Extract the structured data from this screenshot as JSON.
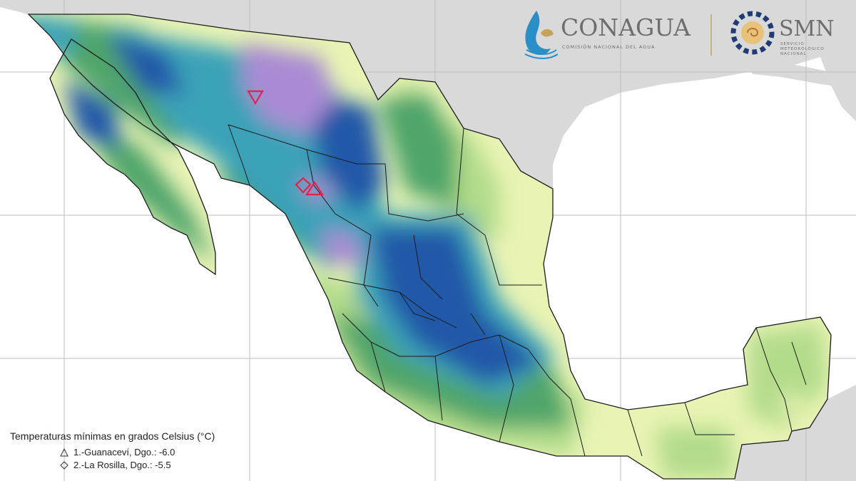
{
  "header": {
    "agency_name": "CONAGUA",
    "agency_subtitle": "COMISIÓN NACIONAL DEL AGUA",
    "service_name": "SMN",
    "service_subtitle_line1": "SERVICIO",
    "service_subtitle_line2": "METEOROLÓGICO",
    "service_subtitle_line3": "NACIONAL"
  },
  "legend": {
    "title": "Temperaturas mínimas en grados Celsius (°C)",
    "items": [
      {
        "label": "1.-Guanaceví, Dgo.: -6.0",
        "symbol": "triangle-icon"
      },
      {
        "label": "2.-La Rosilla, Dgo.: -5.5",
        "symbol": "diamond-icon"
      }
    ]
  },
  "colors": {
    "ocean": "#ffffff",
    "foreign_land": "#d9d9d9",
    "grid": "#bdbdbd",
    "warm": "#e8f3b4",
    "mild": "#b2dc8a",
    "cool": "#4fa56b",
    "cold": "#2f8f4e",
    "colder": "#3aa2b8",
    "very_cold": "#2158a8",
    "freezing": "#a98bd3",
    "marker": "#e0244b",
    "state_border": "#1b1b1b"
  }
}
